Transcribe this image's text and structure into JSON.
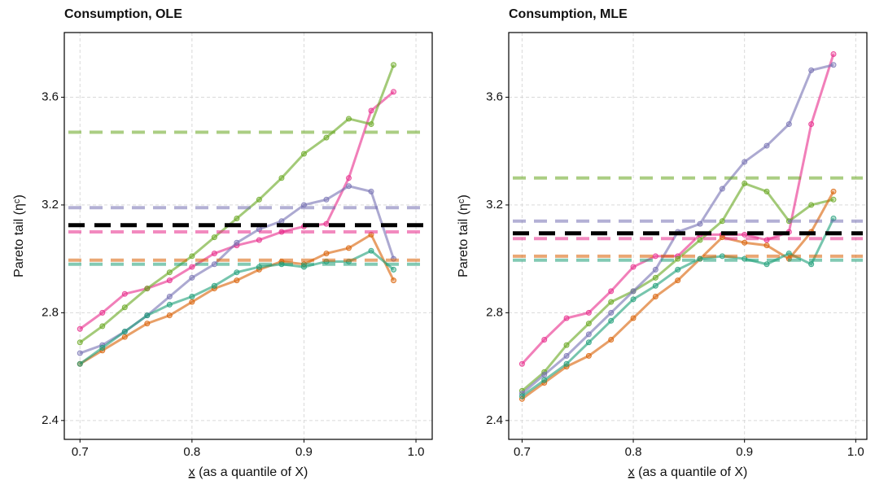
{
  "chart_data": [
    {
      "type": "line",
      "title": "Consumption, OLE",
      "ylabel": "Pareto tail (ηᶜ)",
      "xlabel_var": "x",
      "xlabel": "(as a quantile of X)",
      "xlim": [
        0.686,
        1.0145
      ],
      "ylim": [
        2.33,
        3.84
      ],
      "xticks": [
        0.7,
        0.8,
        0.9,
        {
          "value": 1,
          "label": "1.0"
        }
      ],
      "yticks": [
        2.4,
        2.8,
        3.2,
        3.6
      ],
      "grid": true,
      "x": [
        0.7,
        0.72,
        0.74,
        0.76,
        0.78,
        0.8,
        0.82,
        0.84,
        0.86,
        0.88,
        0.9,
        0.92,
        0.94,
        0.96,
        0.98
      ],
      "series": [
        {
          "color": "#e7298a",
          "values": [
            2.74,
            2.8,
            2.87,
            2.89,
            2.92,
            2.97,
            3.02,
            3.05,
            3.07,
            3.1,
            3.12,
            3.13,
            3.3,
            3.55,
            3.62
          ]
        },
        {
          "color": "#66a61e",
          "values": [
            2.69,
            2.75,
            2.82,
            2.89,
            2.95,
            3.01,
            3.08,
            3.15,
            3.22,
            3.3,
            3.39,
            3.45,
            3.52,
            3.5,
            3.72
          ]
        },
        {
          "color": "#7570b3",
          "values": [
            2.65,
            2.68,
            2.73,
            2.79,
            2.86,
            2.93,
            2.98,
            3.06,
            3.11,
            3.14,
            3.2,
            3.22,
            3.27,
            3.25,
            3.0
          ]
        },
        {
          "color": "#d95f02",
          "values": [
            2.61,
            2.66,
            2.71,
            2.76,
            2.79,
            2.84,
            2.89,
            2.92,
            2.96,
            2.99,
            2.98,
            3.02,
            3.04,
            3.09,
            2.92
          ]
        },
        {
          "color": "#1b9e77",
          "values": [
            2.61,
            2.67,
            2.73,
            2.79,
            2.83,
            2.86,
            2.9,
            2.95,
            2.97,
            2.98,
            2.97,
            2.99,
            2.99,
            3.03,
            2.96
          ]
        }
      ],
      "hlines": [
        {
          "color": "#66a61e",
          "value": 3.47
        },
        {
          "color": "#7570b3",
          "value": 3.19
        },
        {
          "color": "#e7298a",
          "value": 3.1
        },
        {
          "color": "#d95f02",
          "value": 2.995
        },
        {
          "color": "#1b9e77",
          "value": 2.98
        },
        {
          "color": "#000000",
          "value": 3.125
        }
      ]
    },
    {
      "type": "line",
      "title": "Consumption, MLE",
      "ylabel": "Pareto tail (ηᶜ)",
      "xlabel_var": "x",
      "xlabel": "(as a quantile of X)",
      "xlim": [
        0.688,
        1.01
      ],
      "ylim": [
        2.33,
        3.84
      ],
      "xticks": [
        0.7,
        0.8,
        0.9,
        {
          "value": 1,
          "label": "1.0"
        }
      ],
      "yticks": [
        2.4,
        2.8,
        3.2,
        3.6
      ],
      "grid": true,
      "x": [
        0.7,
        0.72,
        0.74,
        0.76,
        0.78,
        0.8,
        0.82,
        0.84,
        0.86,
        0.88,
        0.9,
        0.92,
        0.94,
        0.96,
        0.98
      ],
      "series": [
        {
          "color": "#e7298a",
          "values": [
            2.61,
            2.7,
            2.78,
            2.8,
            2.88,
            2.97,
            3.01,
            3.01,
            3.09,
            3.09,
            3.09,
            3.07,
            3.1,
            3.5,
            3.76
          ]
        },
        {
          "color": "#66a61e",
          "values": [
            2.51,
            2.58,
            2.68,
            2.76,
            2.84,
            2.88,
            2.93,
            3.0,
            3.07,
            3.14,
            3.28,
            3.25,
            3.14,
            3.2,
            3.22
          ]
        },
        {
          "color": "#7570b3",
          "values": [
            2.5,
            2.57,
            2.64,
            2.72,
            2.8,
            2.88,
            2.96,
            3.1,
            3.13,
            3.26,
            3.36,
            3.42,
            3.5,
            3.7,
            3.72
          ]
        },
        {
          "color": "#d95f02",
          "values": [
            2.48,
            2.54,
            2.6,
            2.64,
            2.7,
            2.78,
            2.86,
            2.92,
            3.0,
            3.08,
            3.06,
            3.05,
            3.0,
            3.1,
            3.25
          ]
        },
        {
          "color": "#1b9e77",
          "values": [
            2.49,
            2.55,
            2.61,
            2.69,
            2.77,
            2.85,
            2.9,
            2.96,
            3.0,
            3.01,
            3.0,
            2.98,
            3.02,
            2.98,
            3.15
          ]
        }
      ],
      "hlines": [
        {
          "color": "#66a61e",
          "value": 3.3
        },
        {
          "color": "#7570b3",
          "value": 3.14
        },
        {
          "color": "#e7298a",
          "value": 3.075
        },
        {
          "color": "#d95f02",
          "value": 3.01
        },
        {
          "color": "#1b9e77",
          "value": 2.995
        },
        {
          "color": "#000000",
          "value": 3.095
        }
      ]
    }
  ]
}
